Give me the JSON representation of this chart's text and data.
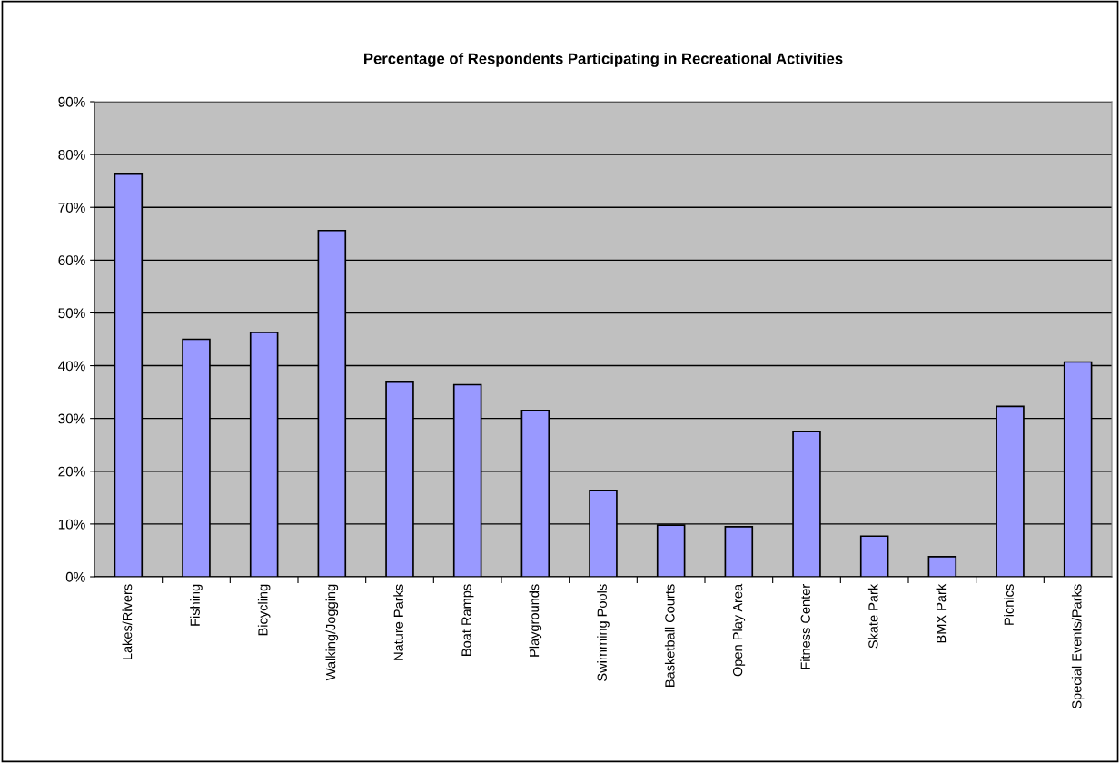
{
  "chart_data": {
    "type": "bar",
    "title": "Percentage of Respondents Participating in Recreational Activities",
    "categories": [
      "Lakes/Rivers",
      "Fishing",
      "Bicycling",
      "Walking/Jogging",
      "Nature Parks",
      "Boat Ramps",
      "Playgrounds",
      "Swimming Pools",
      "Basketball Courts",
      "Open Play Area",
      "Fitness Center",
      "Skate Park",
      "BMX Park",
      "Picnics",
      "Special Events/Parks"
    ],
    "values": [
      76.3,
      45.0,
      46.3,
      65.6,
      36.9,
      36.4,
      31.5,
      16.3,
      9.8,
      9.5,
      27.5,
      7.7,
      3.8,
      32.3,
      40.7
    ],
    "color": "#9999ff",
    "ylim": [
      0,
      90
    ],
    "yticks": [
      {
        "value": 0,
        "label": "0%"
      },
      {
        "value": 10,
        "label": "10%"
      },
      {
        "value": 20,
        "label": "20%"
      },
      {
        "value": 30,
        "label": "30%"
      },
      {
        "value": 40,
        "label": "40%"
      },
      {
        "value": 50,
        "label": "50%"
      },
      {
        "value": 60,
        "label": "60%"
      },
      {
        "value": 70,
        "label": "70%"
      },
      {
        "value": 80,
        "label": "80%"
      },
      {
        "value": 90,
        "label": "90%"
      }
    ],
    "grid": "y",
    "legend": false
  }
}
